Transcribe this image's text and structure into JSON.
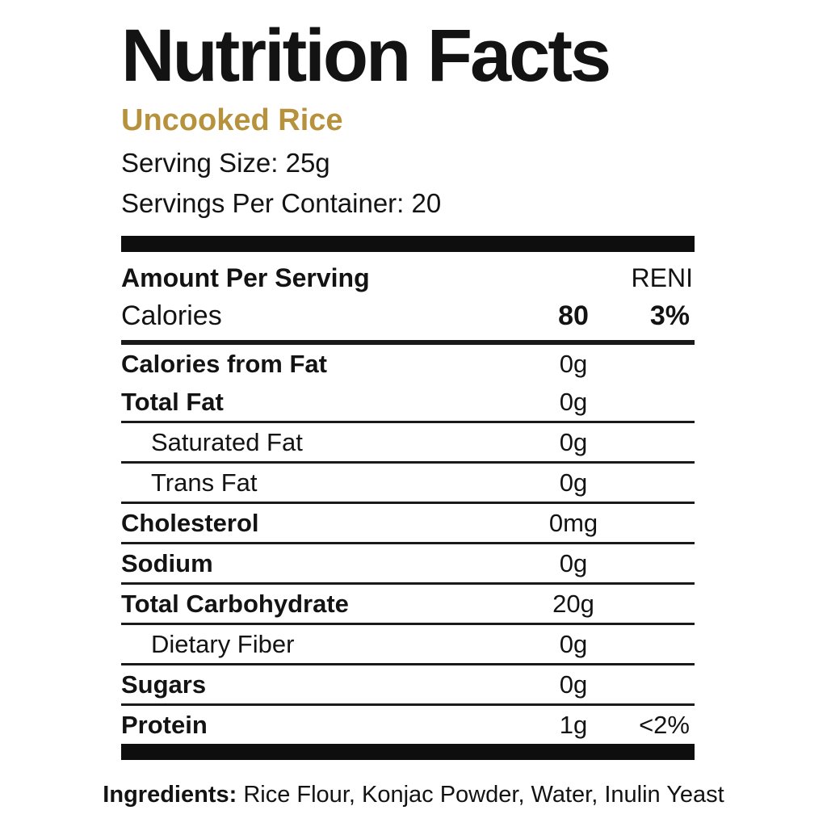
{
  "label": {
    "title": "Nutrition Facts",
    "subtitle": "Uncooked Rice",
    "serving_size": "Serving Size: 25g",
    "servings_per_container": "Servings Per Container: 20",
    "header": {
      "left": "Amount Per Serving",
      "right": "RENI"
    },
    "calories_row": {
      "name": "Calories",
      "amount": "80",
      "percent": "3%"
    },
    "rows": [
      {
        "name": "Calories from Fat",
        "amount": "0g",
        "percent": "",
        "bold": true,
        "indent": false,
        "divider": true
      },
      {
        "name": "Total Fat",
        "amount": "0g",
        "percent": "",
        "bold": true,
        "indent": false,
        "divider": false
      },
      {
        "name": "Saturated Fat",
        "amount": "0g",
        "percent": "",
        "bold": false,
        "indent": true,
        "divider": true
      },
      {
        "name": "Trans Fat",
        "amount": "0g",
        "percent": "",
        "bold": false,
        "indent": true,
        "divider": true
      },
      {
        "name": "Cholesterol",
        "amount": "0mg",
        "percent": "",
        "bold": true,
        "indent": false,
        "divider": true
      },
      {
        "name": "Sodium",
        "amount": "0g",
        "percent": "",
        "bold": true,
        "indent": false,
        "divider": true
      },
      {
        "name": "Total Carbohydrate",
        "amount": "20g",
        "percent": "",
        "bold": true,
        "indent": false,
        "divider": true
      },
      {
        "name": "Dietary Fiber",
        "amount": "0g",
        "percent": "",
        "bold": false,
        "indent": true,
        "divider": true
      },
      {
        "name": "Sugars",
        "amount": "0g",
        "percent": "",
        "bold": true,
        "indent": false,
        "divider": true
      },
      {
        "name": "Protein",
        "amount": "1g",
        "percent": "<2%",
        "bold": true,
        "indent": false,
        "divider": true
      }
    ],
    "ingredients": {
      "label": "Ingredients:",
      "text": "Rice Flour, Konjac Powder, Water, Inulin Yeast"
    }
  },
  "colors": {
    "accent_gold": "#b6923c",
    "text": "#131313",
    "divider": "#1a1a1a"
  }
}
